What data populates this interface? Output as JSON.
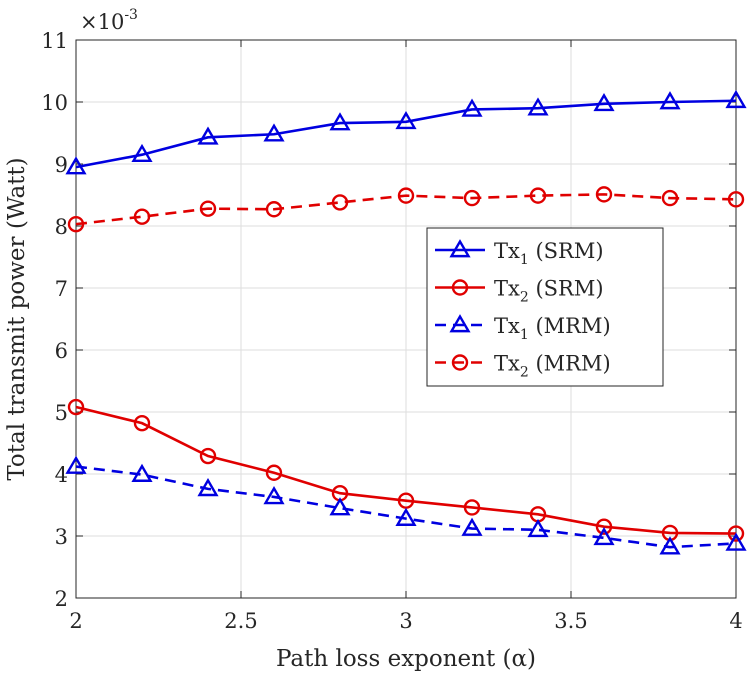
{
  "chart_data": {
    "type": "line",
    "title": "",
    "xlabel": "Path loss exponent (α)",
    "ylabel": "Total transmit power (Watt)",
    "y_scale_label": "×10",
    "y_scale_exponent": "-3",
    "xlim": [
      2,
      4
    ],
    "ylim": [
      2,
      11
    ],
    "xticks": [
      2,
      2.5,
      3,
      3.5,
      4
    ],
    "xtick_labels": [
      "2",
      "2.5",
      "3",
      "3.5",
      "4"
    ],
    "yticks": [
      2,
      3,
      4,
      5,
      6,
      7,
      8,
      9,
      10,
      11
    ],
    "ytick_labels": [
      "2",
      "3",
      "4",
      "5",
      "6",
      "7",
      "8",
      "9",
      "10",
      "11"
    ],
    "grid": true,
    "legend_position": "right-middle",
    "x": [
      2,
      2.2,
      2.4,
      2.6,
      2.8,
      3,
      3.2,
      3.4,
      3.6,
      3.8,
      4
    ],
    "series": [
      {
        "name": "Tx₁ (SRM)",
        "name_base": "Tx",
        "name_sub": "1",
        "name_rest": " (SRM)",
        "color": "#0000e0",
        "dash": "solid",
        "marker": "triangle",
        "values": [
          8.95,
          9.15,
          9.43,
          9.48,
          9.66,
          9.68,
          9.88,
          9.9,
          9.97,
          10.0,
          10.02
        ]
      },
      {
        "name": "Tx₂ (SRM)",
        "name_base": "Tx",
        "name_sub": "2",
        "name_rest": " (SRM)",
        "color": "#e00000",
        "dash": "solid",
        "marker": "circle",
        "values": [
          5.08,
          4.82,
          4.29,
          4.02,
          3.69,
          3.57,
          3.46,
          3.35,
          3.15,
          3.05,
          3.04
        ]
      },
      {
        "name": "Tx₁ (MRM)",
        "name_base": "Tx",
        "name_sub": "1",
        "name_rest": " (MRM)",
        "color": "#0000e0",
        "dash": "dashed",
        "marker": "triangle",
        "values": [
          4.12,
          3.99,
          3.76,
          3.63,
          3.45,
          3.28,
          3.12,
          3.1,
          2.97,
          2.82,
          2.88
        ]
      },
      {
        "name": "Tx₂ (MRM)",
        "name_base": "Tx",
        "name_sub": "2",
        "name_rest": " (MRM)",
        "color": "#e00000",
        "dash": "dashed",
        "marker": "circle",
        "values": [
          8.03,
          8.15,
          8.28,
          8.27,
          8.38,
          8.49,
          8.45,
          8.49,
          8.51,
          8.45,
          8.43
        ]
      }
    ]
  }
}
